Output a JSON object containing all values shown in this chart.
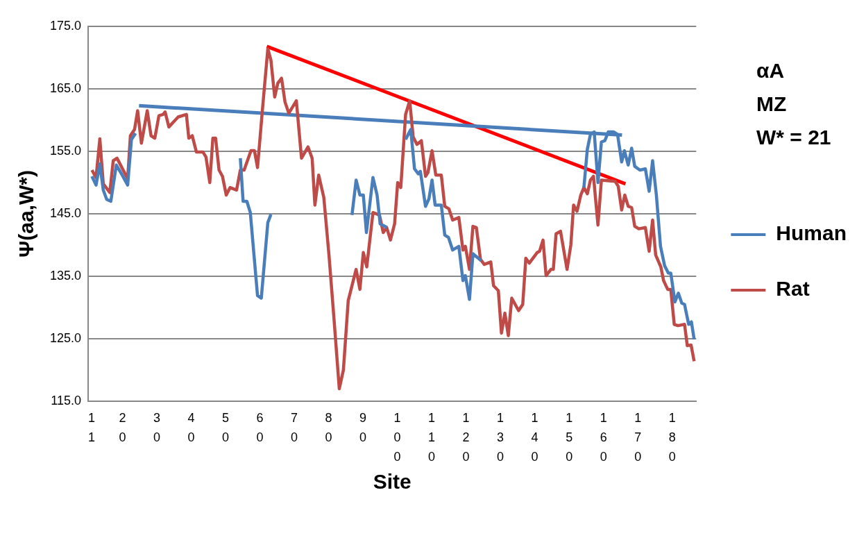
{
  "chart_data": {
    "type": "line",
    "xlabel": "Site",
    "ylabel": "Ψ(aa,W*)",
    "annotations": [
      "αA",
      "MZ",
      "W* = 21"
    ],
    "xlim": [
      10,
      187
    ],
    "xticks": [
      11,
      20,
      30,
      40,
      50,
      60,
      70,
      80,
      90,
      100,
      110,
      120,
      130,
      140,
      150,
      160,
      170,
      180
    ],
    "ylim": [
      115,
      175
    ],
    "yticks": [
      {
        "value": 115,
        "label": "115.0"
      },
      {
        "value": 125,
        "label": "125.0"
      },
      {
        "value": 135,
        "label": "135.0"
      },
      {
        "value": 145,
        "label": "145.0"
      },
      {
        "value": 155,
        "label": "155.0"
      },
      {
        "value": 165,
        "label": "165.0"
      },
      {
        "value": 175,
        "label": "175.0"
      }
    ],
    "grid": "y",
    "legend": "right",
    "marker": "none",
    "line_style": "solid",
    "series": [
      {
        "name": "Human",
        "color": "#4a7ebb",
        "x": [
          11.1,
          12.3,
          13.4,
          14.4,
          15.4,
          16.6,
          18.2,
          19.7,
          21.5,
          22.6,
          23.8,
          40,
          54.3,
          55.1,
          56.2,
          57.2,
          59.3,
          60.4,
          62.3,
          63.2,
          75,
          86.8,
          88.0,
          89.1,
          90.1,
          91.0,
          92.9,
          94.1,
          95.0,
          97.0,
          100,
          102.4,
          103.9,
          105.0,
          106.1,
          106.7,
          108.2,
          109.2,
          110.1,
          111.0,
          112.8,
          113.8,
          114.9,
          116.1,
          117.9,
          119.1,
          119.8,
          121.0,
          122.0,
          124.4,
          140,
          154.3,
          155.3,
          156.2,
          157.3,
          158.4,
          159.4,
          160.4,
          161.4,
          163.0,
          164.1,
          165.3,
          166.1,
          167.2,
          168.2,
          169.1,
          170.6,
          172.2,
          173.3,
          174.3,
          175.4,
          176.6,
          177.8,
          178.9,
          179.6,
          180.8,
          181.8,
          182.8,
          183.6,
          184.8,
          185.6,
          186.4
        ],
        "values": [
          151.0,
          149.6,
          153.0,
          148.8,
          147.3,
          147.0,
          152.8,
          151.4,
          149.6,
          156.9,
          157.9,
          null,
          153.9,
          147.0,
          147.0,
          145.2,
          131.9,
          131.5,
          143.6,
          144.9,
          null,
          144.8,
          150.4,
          148.0,
          148.0,
          142.0,
          150.8,
          148.0,
          143.4,
          142.8,
          null,
          156.9,
          158.5,
          152.2,
          151.4,
          151.8,
          146.2,
          147.4,
          150.4,
          146.4,
          146.4,
          141.6,
          141.2,
          139.2,
          139.8,
          134.3,
          135.1,
          131.3,
          138.6,
          137.5,
          null,
          149.2,
          155.3,
          157.7,
          158.1,
          150.0,
          156.5,
          156.7,
          158.1,
          158.1,
          157.7,
          153.3,
          155.1,
          152.8,
          155.5,
          152.6,
          152.0,
          152.2,
          148.6,
          153.5,
          148.0,
          139.8,
          136.7,
          135.5,
          135.5,
          130.9,
          132.3,
          130.7,
          130.5,
          127.3,
          127.7,
          124.9
        ]
      },
      {
        "name": "Rat",
        "color": "#be4b48",
        "x": [
          11.1,
          12.3,
          13.4,
          14.4,
          16.3,
          17.3,
          18.4,
          21.5,
          22.3,
          23.5,
          24.4,
          25.5,
          27.2,
          28.3,
          29.4,
          30.6,
          31.8,
          32.4,
          33.5,
          36.2,
          38.6,
          39.3,
          40.3,
          41.5,
          43.4,
          44.3,
          45.4,
          46.3,
          47.1,
          48.1,
          49.1,
          50.2,
          51.3,
          53.2,
          54.3,
          55.4,
          57.4,
          58.4,
          59.3,
          60.8,
          62.3,
          63.2,
          64.3,
          65.2,
          66.3,
          67.3,
          68.4,
          70.6,
          72.1,
          74.0,
          75.2,
          76.0,
          77.1,
          78.6,
          80.1,
          81.6,
          83.1,
          84.3,
          85.7,
          88.0,
          89.1,
          90.1,
          91.1,
          92.9,
          94.8,
          95.9,
          96.9,
          98.0,
          99.2,
          100.1,
          101.0,
          102.4,
          103.6,
          104.6,
          105.7,
          107.0,
          108.2,
          108.9,
          110.1,
          111.2,
          112.8,
          113.8,
          115.0,
          116.1,
          117.9,
          119.1,
          119.8,
          121.0,
          122.0,
          123.0,
          124.2,
          125.3,
          127.2,
          128.0,
          129.4,
          130.3,
          131.3,
          132.3,
          133.3,
          135.3,
          136.5,
          137.4,
          138.4,
          140.7,
          141.4,
          142.4,
          143.3,
          144.7,
          145.4,
          146.2,
          147.5,
          149.4,
          150.5,
          151.3,
          152.3,
          153.4,
          154.3,
          155.3,
          156.2,
          157.1,
          158.4,
          159.4,
          163.4,
          164.3,
          165.3,
          166.2,
          167.2,
          168.2,
          169.1,
          170.3,
          172.2,
          173.3,
          174.3,
          175.2,
          176.7,
          177.5,
          178.7,
          179.6,
          180.6,
          181.7,
          183.6,
          184.4,
          185.5,
          186.4
        ],
        "values": [
          152.0,
          150.8,
          157.0,
          149.8,
          148.4,
          153.5,
          153.9,
          150.6,
          157.5,
          158.5,
          161.5,
          156.3,
          161.5,
          157.5,
          157.1,
          160.7,
          160.9,
          161.3,
          158.9,
          160.5,
          160.9,
          157.1,
          157.5,
          154.9,
          154.9,
          154.1,
          150.0,
          157.1,
          157.1,
          152.0,
          151.0,
          148.0,
          149.2,
          148.8,
          152.0,
          152.0,
          155.1,
          155.1,
          152.4,
          162.1,
          171.4,
          169.6,
          163.7,
          165.9,
          166.7,
          162.9,
          161.1,
          163.1,
          153.9,
          155.7,
          153.9,
          146.4,
          151.2,
          147.6,
          138.4,
          127.9,
          117.0,
          120.0,
          131.1,
          136.1,
          132.9,
          138.8,
          136.5,
          145.2,
          144.8,
          142.0,
          142.8,
          140.8,
          143.4,
          150.0,
          149.2,
          160.9,
          163.1,
          157.3,
          156.1,
          156.7,
          151.0,
          151.6,
          155.1,
          151.2,
          151.2,
          146.2,
          145.8,
          144.0,
          144.4,
          139.2,
          139.8,
          136.1,
          143.0,
          142.8,
          137.7,
          136.9,
          137.3,
          133.5,
          132.7,
          125.9,
          129.1,
          125.5,
          131.5,
          129.5,
          130.5,
          137.9,
          137.1,
          138.8,
          139.0,
          140.8,
          135.1,
          136.1,
          136.1,
          141.8,
          142.2,
          136.1,
          140.0,
          146.4,
          145.4,
          148.0,
          149.2,
          148.2,
          150.4,
          151.0,
          143.2,
          150.4,
          150.2,
          149.4,
          145.6,
          148.0,
          146.2,
          146.0,
          143.0,
          142.6,
          142.8,
          139.0,
          144.0,
          138.4,
          136.5,
          134.3,
          132.9,
          132.9,
          127.3,
          127.1,
          127.3,
          123.9,
          124.0,
          121.4
        ]
      },
      {
        "type": "line",
        "color": "#4a7ebb",
        "x": [
          24.8,
          165.4
        ],
        "values": [
          162.3,
          157.6
        ]
      },
      {
        "type": "line",
        "color": "#ff0000",
        "x": [
          62.0,
          166.4
        ],
        "values": [
          171.8,
          149.8
        ]
      }
    ]
  }
}
